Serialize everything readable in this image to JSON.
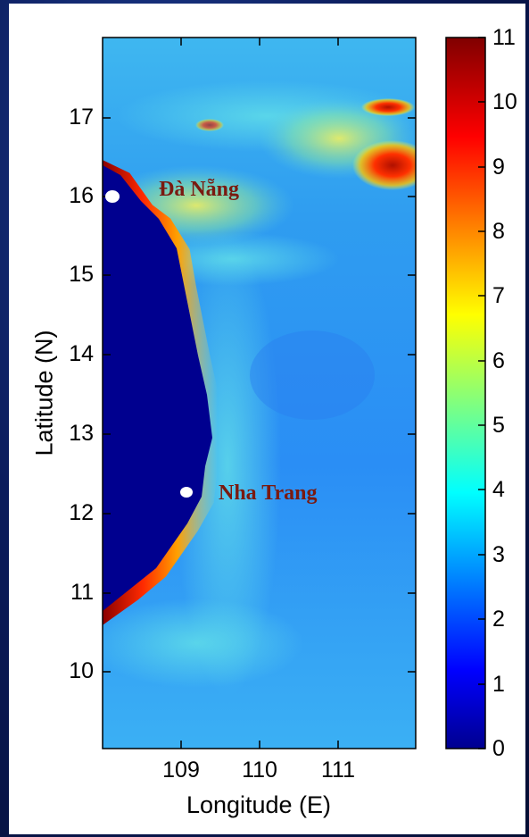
{
  "chart_data": {
    "type": "heatmap",
    "title": "",
    "xlabel": "Longitude (E)",
    "ylabel": "Latitude (N)",
    "xlim": [
      108.1,
      112.1
    ],
    "ylim": [
      9.0,
      18.0
    ],
    "x_ticks": [
      109,
      110,
      111
    ],
    "y_ticks": [
      10,
      11,
      12,
      13,
      14,
      15,
      16,
      17
    ],
    "colorbar": {
      "min": 0,
      "max": 11,
      "ticks": [
        0,
        1,
        2,
        3,
        4,
        5,
        6,
        7,
        8,
        9,
        10,
        11
      ],
      "colormap": "jet"
    },
    "markers": [
      {
        "name": "Đà Nẵng",
        "lon": 108.2,
        "lat": 16.0
      },
      {
        "name": "Nha Trang",
        "lon": 109.1,
        "lat": 12.25
      }
    ],
    "land_color": "#00008f"
  },
  "labels": {
    "da_nang": "Đà Nẵng",
    "nha_trang": "Nha Trang",
    "x_axis": "Longitude (E)",
    "y_axis": "Latitude (N)"
  },
  "colors": {
    "city_text": "#7a1a10",
    "marker": "#ffffff",
    "slide_background": "#0b1c5c"
  }
}
